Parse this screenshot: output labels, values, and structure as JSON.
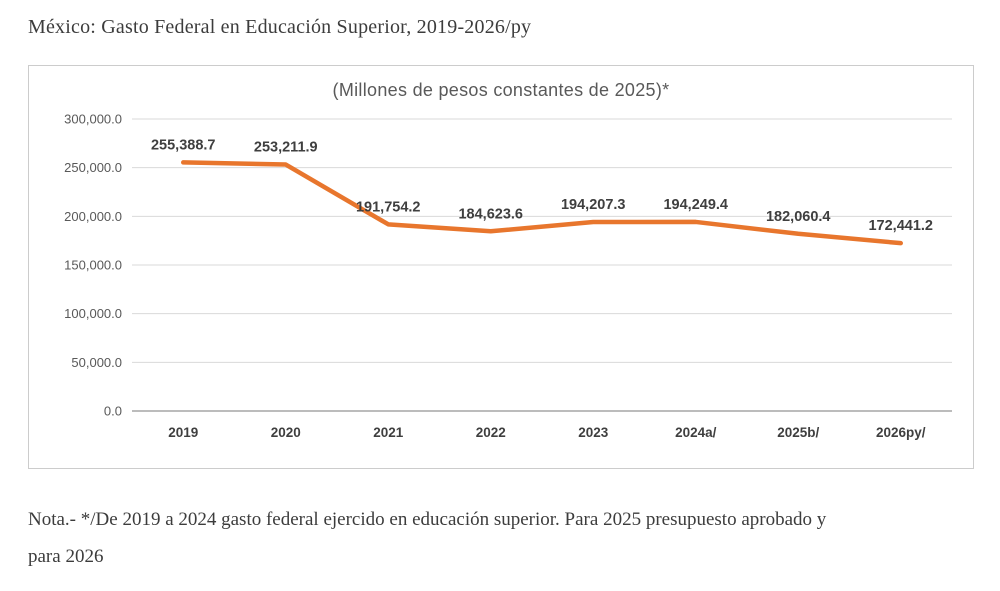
{
  "page": {
    "title": "México: Gasto Federal en Educación Superior, 2019-2026/py",
    "note_line1": "Nota.- */De 2019 a 2024 gasto federal ejercido en educación superior. Para 2025 presupuesto aprobado y",
    "note_line2": "para 2026"
  },
  "chart_data": {
    "type": "line",
    "title": "(Millones de pesos constantes de 2025)*",
    "categories": [
      "2019",
      "2020",
      "2021",
      "2022",
      "2023",
      "2024a/",
      "2025b/",
      "2026py/"
    ],
    "values": [
      255388.7,
      253211.9,
      191754.2,
      184623.6,
      194207.3,
      194249.4,
      182060.4,
      172441.2
    ],
    "data_labels": [
      "255,388.7",
      "253,211.9",
      "191,754.2",
      "184,623.6",
      "194,207.3",
      "194,249.4",
      "182,060.4",
      "172,441.2"
    ],
    "y_ticks": [
      "300,000.0",
      "250,000.0",
      "200,000.0",
      "150,000.0",
      "100,000.0",
      "50,000.0",
      "0.0"
    ],
    "y_tick_values": [
      300000,
      250000,
      200000,
      150000,
      100000,
      50000,
      0
    ],
    "ylim": [
      0,
      300000
    ],
    "grid": true,
    "legend": "none",
    "colors": {
      "line": "#e8762d",
      "grid": "#d9d9d9",
      "axis": "#a6a6a6",
      "tick_label": "#595959",
      "category_label": "#3f3f3f",
      "data_label": "#3f3f3f"
    }
  }
}
